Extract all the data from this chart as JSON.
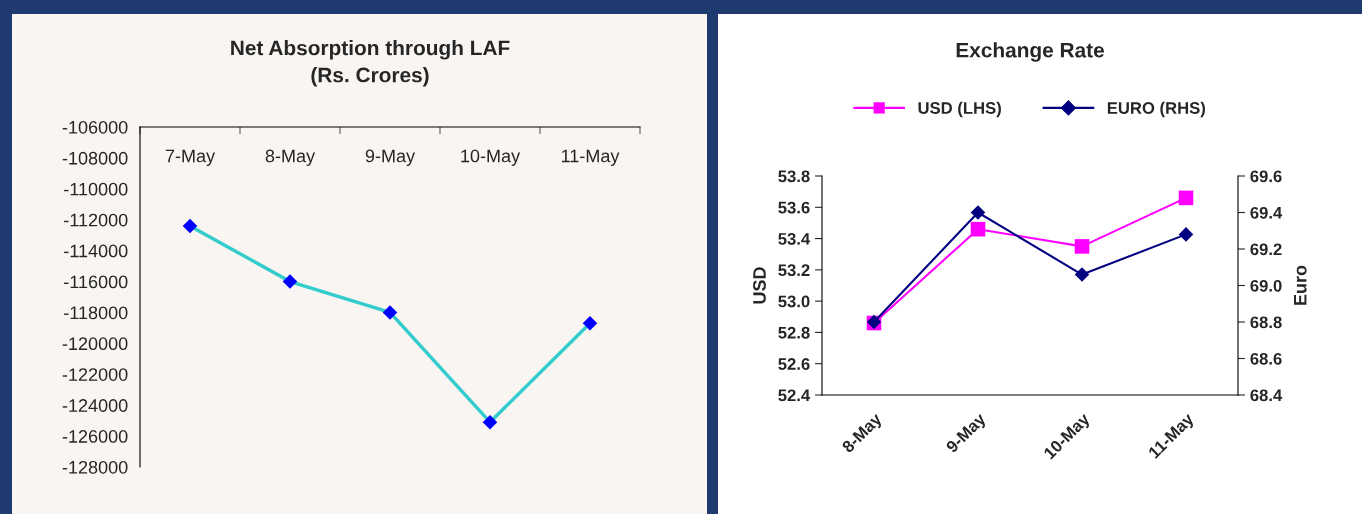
{
  "chart_data": [
    {
      "type": "line",
      "title": "Net Absorption through LAF\n(Rs. Crores)",
      "categories": [
        "7-May",
        "8-May",
        "9-May",
        "10-May",
        "11-May"
      ],
      "series": [
        {
          "color": "#33cccc",
          "colors": [
            "#0000ff",
            "#0000ff",
            "#0000ff",
            "#0000ff",
            "#0000ff"
          ],
          "marker": "diamond",
          "values": [
            -112400,
            -116000,
            -118000,
            -125100,
            -118700
          ]
        }
      ],
      "ylim": [
        -128000,
        -106000
      ],
      "yticks": [
        -128000,
        -126000,
        -124000,
        -122000,
        -120000,
        -118000,
        -116000,
        -114000,
        -112000,
        -110000,
        -108000,
        -106000
      ],
      "grid": false,
      "legend": false
    },
    {
      "type": "line",
      "title": "Exchange Rate",
      "ylabel": "USD",
      "y2label": "Euro",
      "categories": [
        "8-May",
        "9-May",
        "10-May",
        "11-May"
      ],
      "series": [
        {
          "name": "USD (LHS)",
          "color": "#ff00ff",
          "marker": "square",
          "values": [
            52.86,
            53.46,
            53.35,
            53.66
          ]
        },
        {
          "name": "EURO (RHS)",
          "color": "#000080",
          "marker": "diamond",
          "axis": "y2",
          "values": [
            68.8,
            69.4,
            69.06,
            69.28
          ]
        }
      ],
      "ylim": [
        52.4,
        53.8
      ],
      "yticks": [
        {
          "value": 52.4,
          "label": "52.4"
        },
        {
          "value": 52.6,
          "label": "52.6"
        },
        {
          "value": 52.8,
          "label": "52.8"
        },
        {
          "value": 53.0,
          "label": "53.0"
        },
        {
          "value": 53.2,
          "label": "53.2"
        },
        {
          "value": 53.4,
          "label": "53.4"
        },
        {
          "value": 53.6,
          "label": "53.6"
        },
        {
          "value": 53.8,
          "label": "53.8"
        }
      ],
      "y2lim": [
        68.4,
        69.6
      ],
      "y2ticks": [
        {
          "value": 68.4,
          "label": "68.4"
        },
        {
          "value": 68.6,
          "label": "68.6"
        },
        {
          "value": 68.8,
          "label": "68.8"
        },
        {
          "value": 69.0,
          "label": "69.0"
        },
        {
          "value": 69.2,
          "label": "69.2"
        },
        {
          "value": 69.4,
          "label": "69.4"
        },
        {
          "value": 69.6,
          "label": "69.6"
        }
      ],
      "grid": false,
      "legend": "top"
    }
  ]
}
